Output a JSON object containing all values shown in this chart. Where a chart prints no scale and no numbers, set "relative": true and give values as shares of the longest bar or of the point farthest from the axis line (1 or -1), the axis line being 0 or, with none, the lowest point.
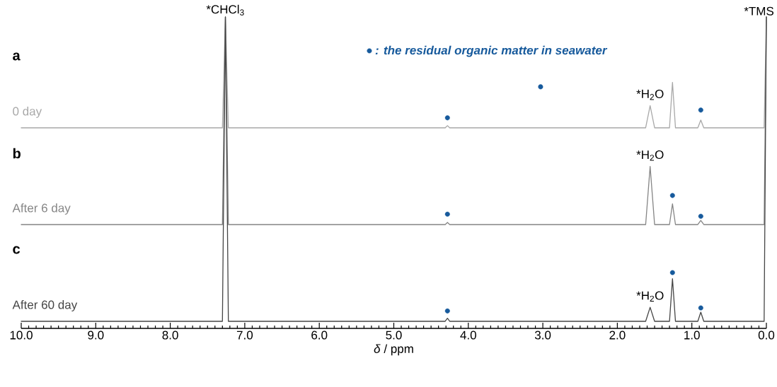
{
  "chart_data": [
    {
      "type": "line",
      "title": "a",
      "relative": true,
      "xlim": [
        10,
        0
      ],
      "legend": "top",
      "annotations": [
        {
          "text": "*CHCl$_{3}$",
          "x": 7.26,
          "y": 1
        },
        {
          "text": "*TMS",
          "x": 0,
          "y": 1
        },
        {
          "text": "*H$_{2}$O",
          "x": 1.56,
          "y": 0.2
        }
      ],
      "series": [
        {
          "name": "0 day",
          "color": "#a8a8a8",
          "x": [
            10,
            7.3,
            7.26,
            7.22,
            4.31,
            4.28,
            4.25,
            1.62,
            1.56,
            1.5,
            1.3,
            1.26,
            1.22,
            0.92,
            0.88,
            0.84,
            0.03,
            0
          ],
          "values": [
            0,
            0,
            1,
            0,
            0,
            0.02,
            0,
            0,
            0.2,
            0,
            0,
            0.41,
            0,
            0,
            0.07,
            0,
            0,
            1
          ]
        },
        {
          "name": ": the residual organic matter in seawater",
          "type": "scatter",
          "marker": "circle",
          "color": "#175a9c",
          "x": [
            4.28,
            3.03,
            0.88
          ],
          "values": [
            0.09,
            0.37,
            0.16
          ]
        }
      ]
    },
    {
      "type": "line",
      "title": "b",
      "relative": true,
      "xlim": [
        10,
        0
      ],
      "annotations": [
        {
          "text": "*H$_{2}$O",
          "x": 1.56,
          "y": 0.28
        }
      ],
      "series": [
        {
          "name": "After 6 day",
          "color": "#858585",
          "x": [
            10,
            7.3,
            7.26,
            7.22,
            4.31,
            4.28,
            4.25,
            1.62,
            1.56,
            1.5,
            1.3,
            1.26,
            1.22,
            0.92,
            0.88,
            0.84,
            0.03,
            0
          ],
          "values": [
            0,
            0,
            1,
            0,
            0,
            0.01,
            0,
            0,
            0.28,
            0,
            0,
            0.1,
            0,
            0,
            0.02,
            0,
            0,
            1
          ]
        },
        {
          "type": "scatter",
          "marker": "circle",
          "color": "#175a9c",
          "x": [
            4.28,
            1.26,
            0.88
          ],
          "values": [
            0.05,
            0.14,
            0.04
          ]
        }
      ]
    },
    {
      "type": "line",
      "title": "c",
      "relative": true,
      "xlim": [
        10,
        0
      ],
      "xlabel": "*δ* / ppm",
      "xticks": [
        {
          "value": 10,
          "label": "10.0"
        },
        {
          "value": 9,
          "label": "9.0"
        },
        {
          "value": 8,
          "label": "8.0"
        },
        {
          "value": 7,
          "label": "7.0"
        },
        {
          "value": 6,
          "label": "6.0"
        },
        {
          "value": 5,
          "label": "5.0"
        },
        {
          "value": 4,
          "label": "4.0"
        },
        {
          "value": 3,
          "label": "3.0"
        },
        {
          "value": 2,
          "label": "2.0"
        },
        {
          "value": 1,
          "label": "1.0"
        },
        {
          "value": 0,
          "label": "0.0"
        }
      ],
      "annotations": [
        {
          "text": "*H$_{2}$O",
          "x": 1.56,
          "y": 0.046
        }
      ],
      "series": [
        {
          "name": "After 60 day",
          "color": "#454545",
          "x": [
            10,
            7.3,
            7.26,
            7.22,
            4.31,
            4.28,
            4.25,
            1.62,
            1.56,
            1.5,
            1.3,
            1.26,
            1.22,
            0.92,
            0.88,
            0.84,
            0.03,
            0
          ],
          "values": [
            0,
            0,
            1,
            0,
            0,
            0.01,
            0,
            0,
            0.046,
            0,
            0,
            0.14,
            0,
            0,
            0.03,
            0,
            0,
            1
          ]
        },
        {
          "type": "scatter",
          "marker": "circle",
          "color": "#175a9c",
          "x": [
            4.28,
            1.26,
            0.88
          ],
          "values": [
            0.034,
            0.16,
            0.044
          ]
        }
      ]
    }
  ]
}
